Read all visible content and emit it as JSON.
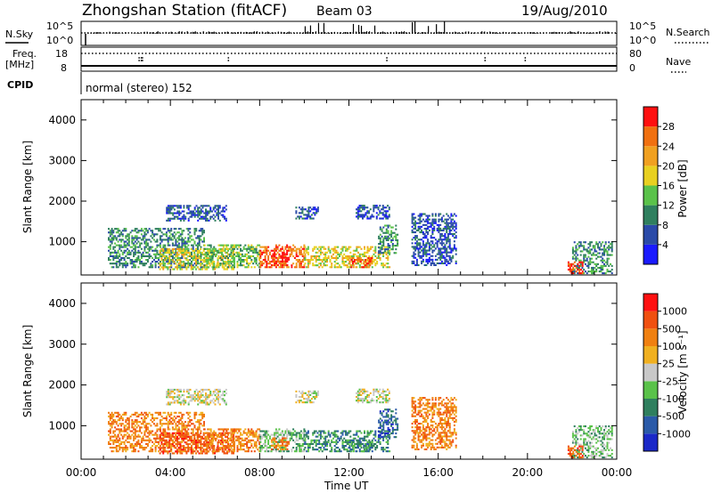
{
  "header": {
    "title": "Zhongshan Station (fitACF)",
    "beam": "Beam 03",
    "date": "19/Aug/2010"
  },
  "info_panel": {
    "nsky_label": "N.Sky",
    "nsky_ticks": [
      "10^5",
      "10^0"
    ],
    "nsearch_label": "N.Search",
    "nsearch_ticks": [
      "10^5",
      "10^0"
    ],
    "freq_label": "Freq.",
    "freq_unit": "[MHz]",
    "freq_ticks": [
      "18",
      "8"
    ],
    "nave_label": "Nave",
    "nave_ticks": [
      "80",
      "0"
    ],
    "cpid_label": "CPID",
    "cpid_text": "normal (stereo) 152"
  },
  "chart_data": [
    {
      "type": "heatmap",
      "title": "",
      "ylabel": "Slant Range [km]",
      "xlabel": "Time UT",
      "x_ticks": [
        "00:00",
        "04:00",
        "08:00",
        "12:00",
        "16:00",
        "20:00",
        "00:00"
      ],
      "xlim_hours": [
        0,
        24
      ],
      "y_ticks": [
        1000,
        2000,
        3000,
        4000
      ],
      "ylim_km": [
        180,
        4500
      ],
      "colorbar": {
        "label": "Power [dB]",
        "ticks": [
          "4",
          "8",
          "12",
          "16",
          "20",
          "24",
          "28"
        ],
        "colors": [
          "#1a1aff",
          "#2a4aa8",
          "#2f7f5e",
          "#5ac24a",
          "#e8d020",
          "#f0a020",
          "#f07010",
          "#ff1010"
        ]
      }
    },
    {
      "type": "heatmap",
      "title": "",
      "ylabel": "Slant Range [km]",
      "xlabel": "Time UT",
      "x_ticks": [
        "00:00",
        "04:00",
        "08:00",
        "12:00",
        "16:00",
        "20:00",
        "00:00"
      ],
      "xlim_hours": [
        0,
        24
      ],
      "y_ticks": [
        1000,
        2000,
        3000,
        4000
      ],
      "ylim_km": [
        180,
        4500
      ],
      "colorbar": {
        "label": "Velocity [m s⁻¹]",
        "ticks": [
          "1000",
          "500",
          "100",
          "25",
          "-25",
          "-100",
          "-500",
          "-1000"
        ],
        "colors": [
          "#1a28c8",
          "#2a5aa8",
          "#2f7f5e",
          "#5ac24a",
          "#c8c8c8",
          "#f0b020",
          "#f08010",
          "#f05010",
          "#ff1010"
        ]
      }
    }
  ],
  "echo_regions": [
    {
      "t0": 1.2,
      "t1": 5.5,
      "r0": 350,
      "r1": 1300,
      "pow": 2,
      "vel": 6
    },
    {
      "t0": 3.5,
      "t1": 6.8,
      "r0": 300,
      "r1": 800,
      "pow": 4,
      "vel": 7
    },
    {
      "t0": 5.5,
      "t1": 8.0,
      "r0": 350,
      "r1": 900,
      "pow": 3,
      "vel": 6
    },
    {
      "t0": 8.0,
      "t1": 10.0,
      "r0": 350,
      "r1": 900,
      "pow": 6,
      "vel": 3
    },
    {
      "t0": 10.0,
      "t1": 13.8,
      "r0": 350,
      "r1": 850,
      "pow": 4,
      "vel": 2
    },
    {
      "t0": 12.0,
      "t1": 13.0,
      "r0": 350,
      "r1": 600,
      "pow": 6,
      "vel": 2
    },
    {
      "t0": 8.5,
      "t1": 9.3,
      "r0": 400,
      "r1": 700,
      "pow": 7,
      "vel": 6
    },
    {
      "t0": 13.3,
      "t1": 14.2,
      "r0": 700,
      "r1": 1400,
      "pow": 2,
      "vel": 1
    },
    {
      "t0": 14.8,
      "t1": 16.8,
      "r0": 400,
      "r1": 1700,
      "pow": 1,
      "vel": 6
    },
    {
      "t0": 22.0,
      "t1": 23.8,
      "r0": 200,
      "r1": 1000,
      "pow": 2,
      "vel": 3
    },
    {
      "t0": 21.8,
      "t1": 22.5,
      "r0": 200,
      "r1": 500,
      "pow": 7,
      "vel": 7
    },
    {
      "t0": 9.6,
      "t1": 10.6,
      "r0": 1550,
      "r1": 1850,
      "pow": 1,
      "vel": 4
    },
    {
      "t0": 12.3,
      "t1": 13.8,
      "r0": 1550,
      "r1": 1900,
      "pow": 1,
      "vel": 4
    },
    {
      "t0": 3.8,
      "t1": 6.5,
      "r0": 1500,
      "r1": 1900,
      "pow": 1,
      "vel": 4
    }
  ]
}
